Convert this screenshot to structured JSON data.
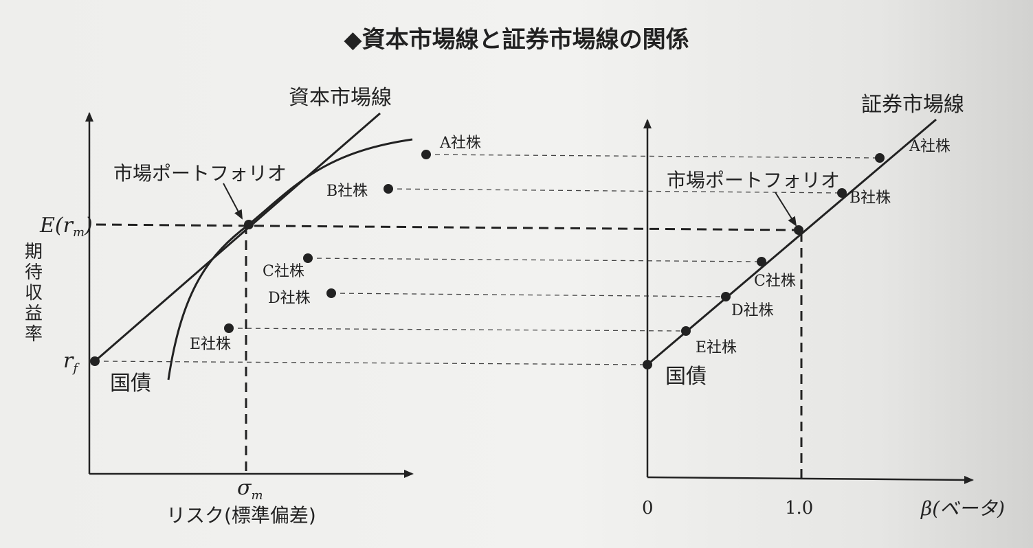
{
  "title": "◆資本市場線と証券市場線の関係",
  "left": {
    "cml_label": "資本市場線",
    "market_portfolio_label": "市場ポートフォリオ",
    "y_tick_em": "E(r",
    "y_tick_em_sub": "m",
    "y_tick_em_close": ")",
    "y_tick_rf": "r",
    "y_tick_rf_sub": "f",
    "y_axis_label": [
      "期",
      "待",
      "収",
      "益",
      "率"
    ],
    "x_tick_sigma": "σ",
    "x_tick_sigma_sub": "m",
    "x_axis_label": "リスク(標準偏差)",
    "bond_label": "国債",
    "stocks": {
      "a": "A社株",
      "b": "B社株",
      "c": "C社株",
      "d": "D社株",
      "e": "E社株"
    }
  },
  "right": {
    "sml_label": "証券市場線",
    "market_portfolio_label": "市場ポートフォリオ",
    "stocks": {
      "a": "A社株",
      "b": "B社株",
      "c": "C社株",
      "d": "D社株",
      "e": "E社株"
    },
    "bond_label": "国債",
    "x_tick_zero": "0",
    "x_tick_one": "1.0",
    "x_axis_label": "β(ベータ)"
  },
  "colors": {
    "ink": "#222222",
    "background": "#eeeeec"
  }
}
